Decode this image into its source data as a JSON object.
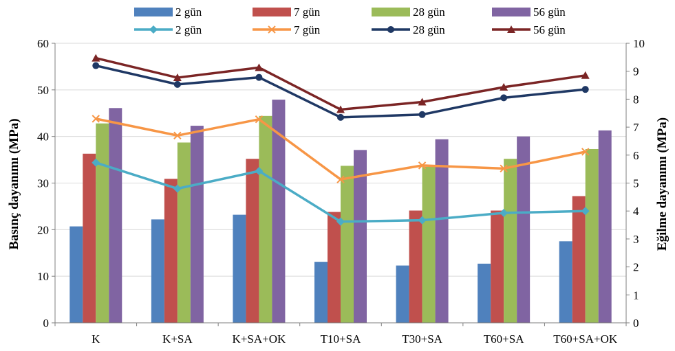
{
  "chart_data": {
    "type": "bar+line",
    "categories": [
      "K",
      "K+SA",
      "K+SA+OK",
      "T10+SA",
      "T30+SA",
      "T60+SA",
      "T60+SA+OK"
    ],
    "bar_series": [
      {
        "name": "2 gün",
        "color": "#4F81BD",
        "values": [
          20.7,
          22.2,
          23.2,
          13.1,
          12.3,
          12.7,
          17.5
        ]
      },
      {
        "name": "7 gün",
        "color": "#C0504D",
        "values": [
          36.3,
          30.9,
          35.2,
          23.8,
          24.1,
          24.1,
          27.2
        ]
      },
      {
        "name": "28 gün",
        "color": "#9BBB59",
        "values": [
          42.8,
          38.7,
          44.4,
          33.7,
          33.5,
          35.2,
          37.3
        ]
      },
      {
        "name": "56 gün",
        "color": "#8064A2",
        "values": [
          46.1,
          42.3,
          47.9,
          37.1,
          39.4,
          40.0,
          41.3
        ]
      }
    ],
    "line_series": [
      {
        "name": "2 gün",
        "color": "#4BACC6",
        "marker": "diamond",
        "values": [
          5.73,
          4.8,
          5.43,
          3.62,
          3.67,
          3.93,
          4.0
        ]
      },
      {
        "name": "7 gün",
        "color": "#F79646",
        "marker": "x",
        "values": [
          7.3,
          6.7,
          7.28,
          5.13,
          5.63,
          5.52,
          6.12
        ]
      },
      {
        "name": "28 gün",
        "color": "#1F3864",
        "marker": "circle",
        "values": [
          9.2,
          8.53,
          8.78,
          7.35,
          7.45,
          8.05,
          8.35
        ]
      },
      {
        "name": "56 gün",
        "color": "#7B2525",
        "marker": "triangle",
        "values": [
          9.47,
          8.77,
          9.13,
          7.63,
          7.9,
          8.43,
          8.85
        ]
      }
    ],
    "y_left": {
      "label": "Basınç dayanımı (MPa)",
      "min": 0,
      "max": 60,
      "step": 10
    },
    "y_right": {
      "label": "Eğilme dayanımı (MPa)",
      "min": 0,
      "max": 10,
      "step": 1
    },
    "legend_position": "top"
  }
}
